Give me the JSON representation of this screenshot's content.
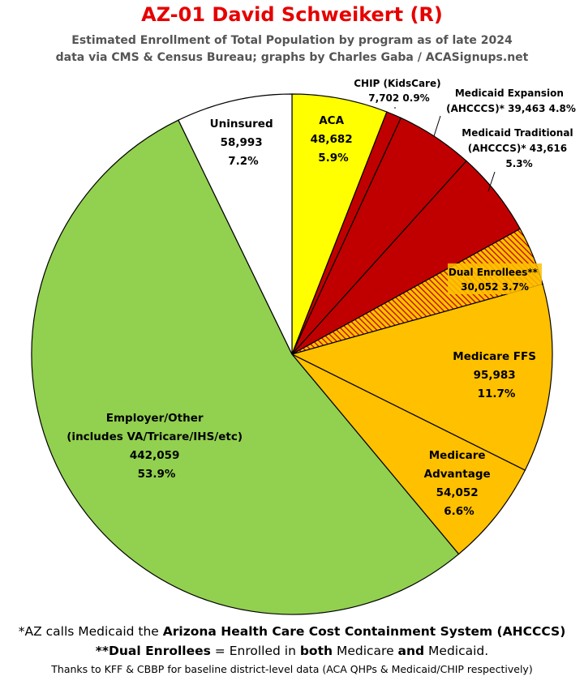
{
  "title": "AZ-01 David Schweikert (R)",
  "subtitle1": "Estimated Enrollment of Total Population by program as of late 2024",
  "subtitle2": "data via CMS & Census Bureau; graphs by Charles Gaba / ACASignups.net",
  "chart_data": {
    "type": "pie",
    "start": "12 o'clock",
    "direction": "clockwise",
    "slices": [
      {
        "label": "ACA",
        "value": 48682,
        "percent": "5.9%",
        "value_text": "48,682",
        "color": "#ffff00",
        "hatched": false
      },
      {
        "label": "CHIP (KidsCare)",
        "value": 7702,
        "percent": "0.9%",
        "value_text": "7,702",
        "color": "#c00000",
        "hatched": false
      },
      {
        "label": "Medicaid Expansion (AHCCCS)*",
        "value": 39463,
        "percent": "4.8%",
        "value_text": "39,463",
        "color": "#c00000",
        "hatched": false
      },
      {
        "label": "Medicaid Traditional (AHCCCS)*",
        "value": 43616,
        "percent": "5.3%",
        "value_text": "43,616",
        "color": "#c00000",
        "hatched": false
      },
      {
        "label": "Dual Enrollees**",
        "value": 30052,
        "percent": "3.7%",
        "value_text": "30,052",
        "color": "#ffc000",
        "hatched": true
      },
      {
        "label": "Medicare FFS",
        "value": 95983,
        "percent": "11.7%",
        "value_text": "95,983",
        "color": "#ffc000",
        "hatched": false
      },
      {
        "label": "Medicare Advantage",
        "value": 54052,
        "percent": "6.6%",
        "value_text": "54,052",
        "color": "#ffc000",
        "hatched": false
      },
      {
        "label": "Employer/Other (includes VA/Tricare/IHS/etc)",
        "value": 442059,
        "percent": "53.9%",
        "value_text": "442,059",
        "color": "#92d050",
        "hatched": false
      },
      {
        "label": "Uninsured",
        "value": 58993,
        "percent": "7.2%",
        "value_text": "58,993",
        "color": "#ffffff",
        "hatched": false
      }
    ]
  },
  "labels": {
    "aca": [
      "ACA",
      "48,682",
      "5.9%"
    ],
    "chip": [
      "CHIP (KidsCare)",
      "7,702 0.9%"
    ],
    "expansion": [
      "Medicaid Expansion",
      "(AHCCCS)* 39,463 4.8%"
    ],
    "traditional": [
      "Medicaid Traditional",
      "(AHCCCS)* 43,616",
      "5.3%"
    ],
    "dual": [
      "Dual Enrollees**",
      "30,052 3.7%"
    ],
    "ffs": [
      "Medicare FFS",
      "95,983",
      "11.7%"
    ],
    "advantage": [
      "Medicare",
      "Advantage",
      "54,052",
      "6.6%"
    ],
    "employer": [
      "Employer/Other",
      "(includes VA/Tricare/IHS/etc)",
      "442,059",
      "53.9%"
    ],
    "uninsured": [
      "Uninsured",
      "58,993",
      "7.2%"
    ]
  },
  "footer": {
    "line1_a": "*AZ calls Medicaid the ",
    "line1_b": "Arizona Health Care Cost Containment System (AHCCCS)",
    "line2_a": "**Dual Enrollees",
    "line2_b": " = Enrolled in ",
    "line2_c": "both",
    "line2_d": " Medicare ",
    "line2_e": "and",
    "line2_f": " Medicaid.",
    "line3": "Thanks to KFF & CBBP for baseline district-level data (ACA QHPs & Medicaid/CHIP respectively)"
  }
}
